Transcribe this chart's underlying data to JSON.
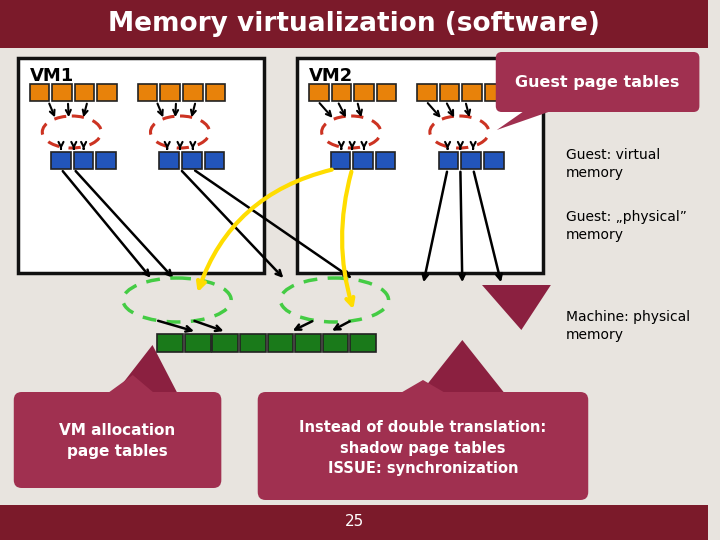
{
  "title": "Memory virtualization (software)",
  "title_bg": "#7B1A2A",
  "title_color": "#FFFFFF",
  "bg_color": "#E8E4DF",
  "vm1_label": "VM1",
  "vm2_label": "VM2",
  "vm_box_color": "#FFFFFF",
  "vm_box_edge": "#111111",
  "orange_color": "#E8820A",
  "blue_color": "#2255BB",
  "green_color": "#1A7A1A",
  "red_dashed_color": "#CC3322",
  "green_dashed_color": "#44CC44",
  "yellow_arrow_color": "#FFDD00",
  "dark_red_triangle": "#8B2040",
  "callout_bg": "#A03050",
  "callout_text": "#FFFFFF",
  "guest_page_tables_label": "Guest page tables",
  "guest_virtual_label": "Guest: virtual\nmemory",
  "guest_physical_label": "Guest: „physical”\nmemory",
  "machine_physical_label": "Machine: physical\nmemory",
  "vm_alloc_label": "VM allocation\npage tables",
  "shadow_label": "Instead of double translation:\nshadow page tables\nISSUE: synchronization",
  "page_num": "25"
}
